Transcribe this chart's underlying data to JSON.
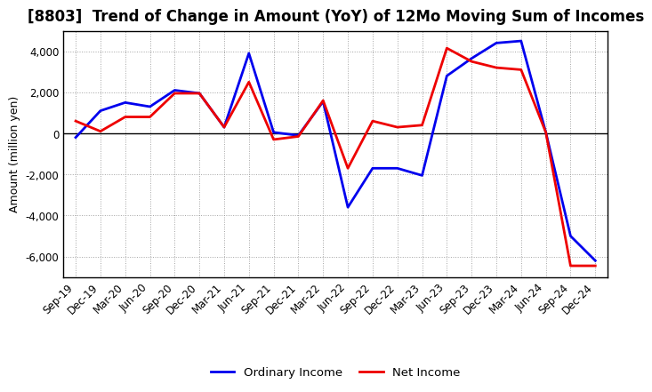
{
  "title": "[8803]  Trend of Change in Amount (YoY) of 12Mo Moving Sum of Incomes",
  "ylabel": "Amount (million yen)",
  "x_labels": [
    "Sep-19",
    "Dec-19",
    "Mar-20",
    "Jun-20",
    "Sep-20",
    "Dec-20",
    "Mar-21",
    "Jun-21",
    "Sep-21",
    "Dec-21",
    "Mar-22",
    "Jun-22",
    "Sep-22",
    "Dec-22",
    "Mar-23",
    "Jun-23",
    "Sep-23",
    "Dec-23",
    "Mar-24",
    "Jun-24",
    "Sep-24",
    "Dec-24"
  ],
  "ordinary_income": [
    -200,
    1100,
    1500,
    1300,
    2100,
    1950,
    300,
    3900,
    50,
    -100,
    1550,
    -3600,
    -1700,
    -1700,
    -2050,
    2800,
    3650,
    4400,
    4500,
    50,
    -5000,
    -6200
  ],
  "net_income": [
    600,
    100,
    800,
    800,
    1950,
    1950,
    300,
    2500,
    -300,
    -150,
    1600,
    -1700,
    600,
    300,
    400,
    4150,
    3500,
    3200,
    3100,
    50,
    -6450,
    -6450
  ],
  "ordinary_color": "#0000ee",
  "net_color": "#ee0000",
  "ylim": [
    -7000,
    5000
  ],
  "yticks": [
    -6000,
    -4000,
    -2000,
    0,
    2000,
    4000
  ],
  "background_color": "#ffffff",
  "plot_bg_color": "#f5f5f5",
  "grid_color": "#999999",
  "legend_labels": [
    "Ordinary Income",
    "Net Income"
  ],
  "title_fontsize": 12,
  "axis_fontsize": 8.5,
  "ylabel_fontsize": 9
}
